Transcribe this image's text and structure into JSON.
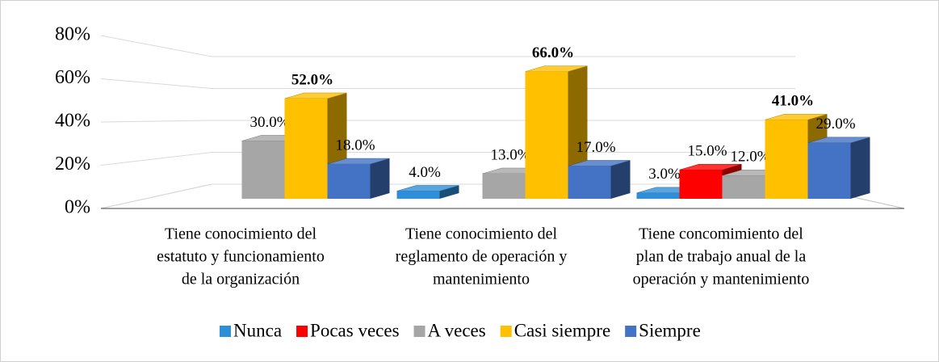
{
  "chart_data": {
    "type": "bar3d",
    "categories": [
      [
        "Tiene conocimiento del",
        "estatuto y funcionamiento",
        "de la organización"
      ],
      [
        "Tiene conocimiento del",
        "reglamento de operación y",
        "mantenimiento"
      ],
      [
        "Tiene concomimiento del",
        "plan de trabajo anual de la",
        "operación y mantenimiento"
      ]
    ],
    "series": [
      {
        "name": "Nunca",
        "color": "#2e8fd8",
        "values": [
          null,
          4,
          3
        ],
        "value_labels": [
          null,
          "4.0%",
          "3.0%"
        ]
      },
      {
        "name": "Pocas veces",
        "color": "#ff0000",
        "values": [
          null,
          null,
          15
        ],
        "value_labels": [
          null,
          null,
          "15.0%"
        ]
      },
      {
        "name": "A veces",
        "color": "#a6a6a6",
        "values": [
          30,
          13,
          12
        ],
        "value_labels": [
          "30.0%",
          "13.0%",
          "12.0%"
        ]
      },
      {
        "name": "Casi siempre",
        "color": "#ffc000",
        "values": [
          52,
          66,
          41
        ],
        "value_labels": [
          "52.0%",
          "66.0%",
          "41.0%"
        ]
      },
      {
        "name": "Siempre",
        "color": "#4472c4",
        "values": [
          18,
          17,
          29
        ],
        "value_labels": [
          "18.0%",
          "17.0%",
          "29.0%"
        ]
      }
    ],
    "ylim": [
      0,
      80
    ],
    "yticks": [
      {
        "value": 0,
        "label": "0%"
      },
      {
        "value": 20,
        "label": "20%"
      },
      {
        "value": 40,
        "label": "40%"
      },
      {
        "value": 60,
        "label": "60%"
      },
      {
        "value": 80,
        "label": "80%"
      }
    ],
    "grid": true,
    "legend": "bottom"
  }
}
